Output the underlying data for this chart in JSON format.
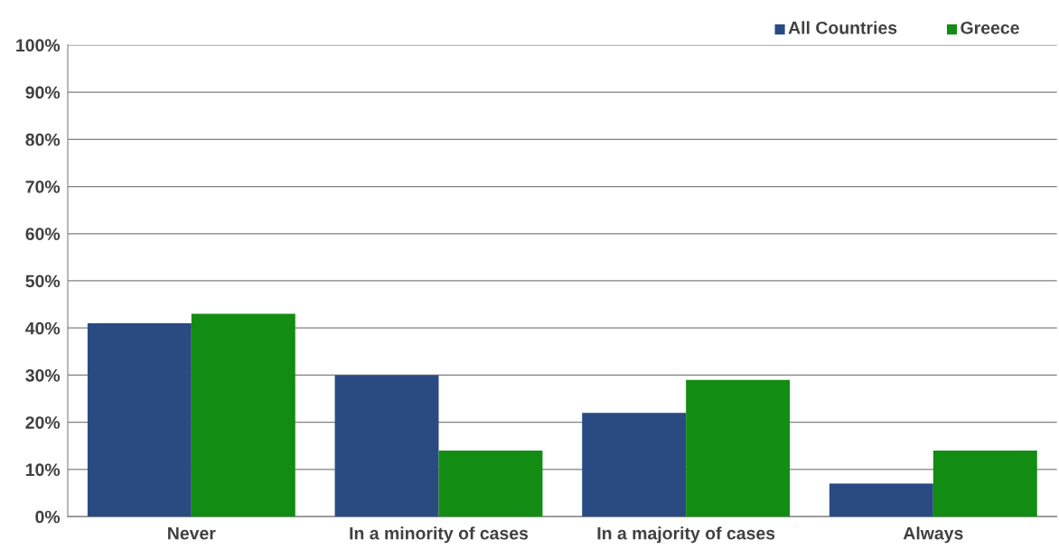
{
  "chart_data": {
    "type": "bar",
    "categories": [
      "Never",
      "In a minority of cases",
      "In a majority of cases",
      "Always"
    ],
    "series": [
      {
        "name": "All Countries",
        "color": "#2a4a82",
        "values": [
          41,
          30,
          22,
          7
        ]
      },
      {
        "name": "Greece",
        "color": "#138c13",
        "values": [
          43,
          14,
          29,
          14
        ]
      }
    ],
    "ylim": [
      0,
      100
    ],
    "yticks": [
      {
        "value": 0,
        "label": "0%"
      },
      {
        "value": 10,
        "label": "10%"
      },
      {
        "value": 20,
        "label": "20%"
      },
      {
        "value": 30,
        "label": "30%"
      },
      {
        "value": 40,
        "label": "40%"
      },
      {
        "value": 50,
        "label": "50%"
      },
      {
        "value": 60,
        "label": "60%"
      },
      {
        "value": 70,
        "label": "70%"
      },
      {
        "value": 80,
        "label": "80%"
      },
      {
        "value": 90,
        "label": "90%"
      },
      {
        "value": 100,
        "label": "100%"
      }
    ],
    "grid": "y",
    "legend": "top right"
  }
}
